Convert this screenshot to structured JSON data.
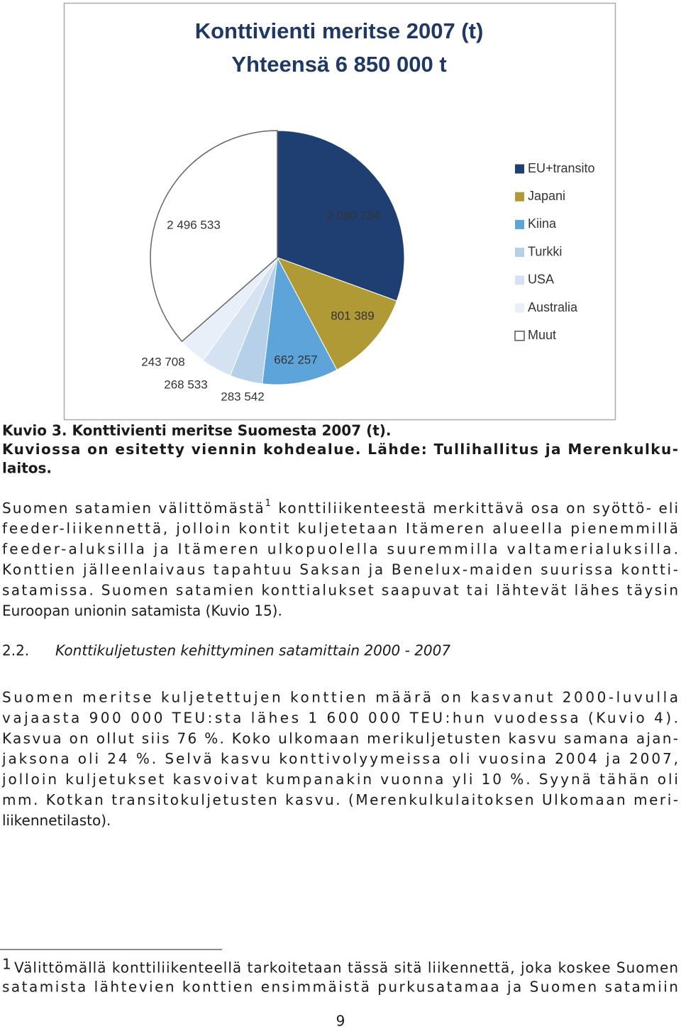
{
  "chart_data": {
    "type": "pie",
    "title": "Konttivienti meritse 2007 (t)",
    "subtitle": "Yhteensä 6 850 000 t",
    "categories": [
      "EU+transito",
      "Japani",
      "Kiina",
      "Turkki",
      "USA",
      "Australia",
      "Muut"
    ],
    "values": [
      2090734,
      801389,
      662257,
      283542,
      268533,
      243708,
      2496533
    ],
    "value_labels": [
      "2 090 734",
      "801 389",
      "662 257",
      "283 542",
      "268 533",
      "243 708",
      "2 496 533"
    ],
    "colors": [
      "#1f3f73",
      "#b09a35",
      "#5ca4da",
      "#b6d0ea",
      "#d5e2f2",
      "#e8eff8",
      "#ffffff"
    ],
    "legend": "right"
  },
  "document": {
    "caption": [
      "Kuvio  3. Konttivienti meritse Suomesta 2007 (t).",
      "Kuviossa on esitetty viennin kohdealue. Lähde: Tullihallitus ja Merenkulku-",
      "laitos."
    ],
    "paragraph_1": {
      "first_line_start": "Suomen satamien välittömästä",
      "footnote_ref": "1",
      "first_line_end": " konttiliikenteestä merkittävä osa on syöttö- eli",
      "lines": [
        "feeder-liikennettä, jolloin kontit kuljetetaan Itämeren alueella pienemmillä",
        "feeder-aluksilla ja Itämeren ulkopuolella suuremmilla valtamerialuksilla.",
        "Konttien jälleenlaivaus tapahtuu Saksan ja Benelux-maiden suurissa kontti-",
        "satamissa. Suomen satamien konttialukset saapuvat tai lähtevät lähes täysin",
        "Euroopan unionin satamista (Kuvio  15)."
      ]
    },
    "heading": {
      "number": "2.2.",
      "text": "Konttikuljetusten kehittyminen satamittain 2000 - 2007"
    },
    "paragraph_2": [
      "Suomen meritse kuljetettujen konttien määrä on kasvanut 2000-luvulla",
      "vajaasta 900 000 TEU:sta lähes 1 600 000 TEU:hun vuodessa (Kuvio  4).",
      "Kasvua on ollut siis 76 %. Koko ulkomaan merikuljetusten kasvu samana ajan-",
      "jaksona oli 24 %. Selvä kasvu konttivolyymeissa oli vuosina 2004 ja 2007,",
      "jolloin kuljetukset kasvoivat kumpanakin vuonna yli 10 %. Syynä tähän oli",
      "mm. Kotkan transitokuljetusten kasvu. (Merenkulkulaitoksen Ulkomaan meri-",
      "liikennetilasto)."
    ],
    "footnote": {
      "marker": "1",
      "lines": [
        "Välittömällä konttiliikenteellä tarkoitetaan tässä sitä liikennettä, joka koskee Suomen",
        "satamista lähtevien konttien ensimmäistä purkusatamaa ja Suomen satamiin"
      ]
    },
    "page_number": "9"
  }
}
